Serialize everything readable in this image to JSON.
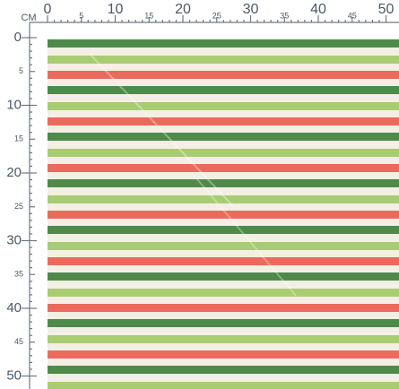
{
  "ruler": {
    "unit": "CM",
    "top_labels": [
      0,
      5,
      10,
      15,
      20,
      25,
      30,
      35,
      40,
      45,
      50
    ],
    "left_labels": [
      0,
      5,
      10,
      15,
      20,
      25,
      30,
      35,
      40,
      45,
      50
    ]
  }
}
